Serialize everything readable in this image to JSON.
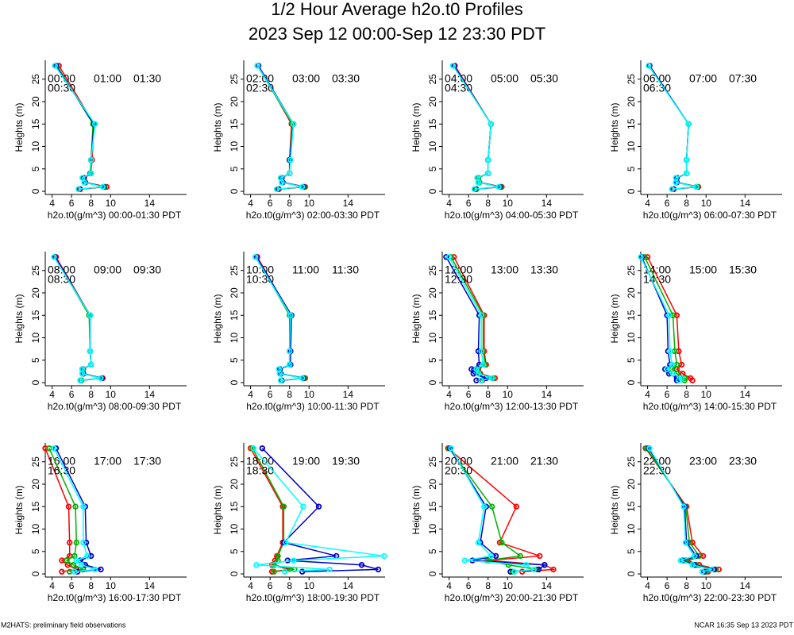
{
  "title": "1/2 Hour Average h2o.t0 Profiles",
  "subtitle": "2023 Sep 12 00:00-Sep 12 23:30 PDT",
  "footer_left": "M2HATS: preliminary field observations",
  "footer_right": "NCAR 16:35 Sep 13 2023 PDT",
  "chart_data": [
    {
      "type": "line",
      "xlabel": "h2o.t0(g/m^3) 00:00-01:30 PDT",
      "ylabel": "Heights (m)",
      "xlim": [
        3.3,
        17.8
      ],
      "ylim": [
        -0.7,
        29.2
      ],
      "xticks": [
        4,
        6,
        8,
        10,
        14
      ],
      "yticks": [
        0,
        5,
        10,
        15,
        20,
        25
      ],
      "y": [
        0.5,
        1,
        2,
        3,
        4,
        7,
        15,
        28
      ],
      "series": [
        {
          "name": "00:00",
          "color": "#ff0000",
          "values": [
            6.9,
            9.6,
            7.4,
            7.3,
            8.0,
            8.1,
            8.3,
            4.7
          ]
        },
        {
          "name": "00:30",
          "color": "#00b000",
          "values": [
            6.8,
            9.4,
            7.3,
            7.2,
            7.9,
            8.0,
            8.2,
            4.5
          ]
        },
        {
          "name": "01:00",
          "color": "#0000cc",
          "values": [
            6.8,
            9.3,
            7.4,
            7.2,
            8.0,
            8.0,
            8.3,
            4.4
          ]
        },
        {
          "name": "01:30",
          "color": "#00ffff",
          "values": [
            6.7,
            9.2,
            7.3,
            7.1,
            8.0,
            8.0,
            8.4,
            4.3
          ]
        }
      ]
    },
    {
      "type": "line",
      "xlabel": "h2o.t0(g/m^3) 02:00-03:30 PDT",
      "ylabel": "Heights (m)",
      "xlim": [
        3.3,
        17.8
      ],
      "ylim": [
        -0.7,
        29.2
      ],
      "xticks": [
        4,
        6,
        8,
        10,
        14
      ],
      "yticks": [
        0,
        5,
        10,
        15,
        20,
        25
      ],
      "y": [
        0.5,
        1,
        2,
        3,
        4,
        7,
        15,
        28
      ],
      "series": [
        {
          "name": "02:00",
          "color": "#ff0000",
          "values": [
            6.9,
            9.6,
            7.3,
            7.2,
            8.0,
            8.0,
            8.2,
            4.8
          ]
        },
        {
          "name": "02:30",
          "color": "#00b000",
          "values": [
            6.8,
            9.5,
            7.2,
            7.1,
            8.0,
            8.0,
            8.3,
            4.7
          ]
        },
        {
          "name": "03:00",
          "color": "#0000cc",
          "values": [
            6.8,
            9.4,
            7.3,
            7.2,
            8.0,
            8.0,
            8.4,
            4.8
          ]
        },
        {
          "name": "03:30",
          "color": "#00ffff",
          "values": [
            6.7,
            9.3,
            7.2,
            7.1,
            8.0,
            8.1,
            8.4,
            4.7
          ]
        }
      ]
    },
    {
      "type": "line",
      "xlabel": "h2o.t0(g/m^3) 04:00-05:30 PDT",
      "ylabel": "Heights (m)",
      "xlim": [
        3.3,
        17.8
      ],
      "ylim": [
        -0.7,
        29.2
      ],
      "xticks": [
        4,
        6,
        8,
        10,
        14
      ],
      "yticks": [
        0,
        5,
        10,
        15,
        20,
        25
      ],
      "y": [
        0.5,
        1,
        2,
        3,
        4,
        7,
        15,
        28
      ],
      "series": [
        {
          "name": "04:00",
          "color": "#ff0000",
          "values": [
            6.8,
            9.4,
            7.1,
            7.0,
            8.0,
            8.0,
            8.3,
            4.6
          ]
        },
        {
          "name": "04:30",
          "color": "#00b000",
          "values": [
            6.8,
            9.3,
            7.1,
            7.0,
            8.0,
            8.0,
            8.3,
            4.5
          ]
        },
        {
          "name": "05:00",
          "color": "#0000cc",
          "values": [
            6.7,
            9.2,
            7.0,
            6.9,
            8.0,
            8.0,
            8.3,
            4.5
          ]
        },
        {
          "name": "05:30",
          "color": "#00ffff",
          "values": [
            6.6,
            9.1,
            7.0,
            6.9,
            8.0,
            8.0,
            8.3,
            4.4
          ]
        }
      ]
    },
    {
      "type": "line",
      "xlabel": "h2o.t0(g/m^3) 06:00-07:30 PDT",
      "ylabel": "Heights (m)",
      "xlim": [
        3.3,
        17.8
      ],
      "ylim": [
        -0.7,
        29.2
      ],
      "xticks": [
        4,
        6,
        8,
        10,
        14
      ],
      "yticks": [
        0,
        5,
        10,
        15,
        20,
        25
      ],
      "y": [
        0.5,
        1,
        2,
        3,
        4,
        7,
        15,
        28
      ],
      "series": [
        {
          "name": "06:00",
          "color": "#ff0000",
          "values": [
            6.7,
            9.2,
            7.0,
            7.0,
            8.0,
            8.0,
            8.2,
            4.2
          ]
        },
        {
          "name": "06:30",
          "color": "#00b000",
          "values": [
            6.6,
            9.1,
            7.0,
            7.0,
            8.0,
            8.0,
            8.2,
            4.2
          ]
        },
        {
          "name": "07:00",
          "color": "#0000cc",
          "values": [
            6.6,
            9.0,
            7.0,
            7.0,
            8.0,
            8.0,
            8.2,
            4.2
          ]
        },
        {
          "name": "07:30",
          "color": "#00ffff",
          "values": [
            6.5,
            9.0,
            6.9,
            6.9,
            8.0,
            8.0,
            8.2,
            4.1
          ]
        }
      ]
    },
    {
      "type": "line",
      "xlabel": "h2o.t0(g/m^3) 08:00-09:30 PDT",
      "ylabel": "Heights (m)",
      "xlim": [
        3.3,
        17.8
      ],
      "ylim": [
        -0.7,
        29.2
      ],
      "xticks": [
        4,
        6,
        8,
        10,
        14
      ],
      "yticks": [
        0,
        5,
        10,
        15,
        20,
        25
      ],
      "y": [
        0.5,
        1,
        2,
        3,
        4,
        7,
        15,
        28
      ],
      "series": [
        {
          "name": "08:00",
          "color": "#ff0000",
          "values": [
            7.0,
            9.2,
            7.2,
            7.2,
            8.0,
            7.9,
            7.9,
            4.4
          ]
        },
        {
          "name": "08:30",
          "color": "#00b000",
          "values": [
            7.0,
            9.1,
            7.1,
            7.1,
            8.0,
            7.9,
            7.8,
            4.3
          ]
        },
        {
          "name": "09:00",
          "color": "#0000cc",
          "values": [
            6.9,
            9.1,
            7.2,
            7.1,
            8.0,
            7.9,
            7.9,
            4.3
          ]
        },
        {
          "name": "09:30",
          "color": "#00ffff",
          "values": [
            6.9,
            9.0,
            7.1,
            7.1,
            8.0,
            7.9,
            7.9,
            4.2
          ]
        }
      ]
    },
    {
      "type": "line",
      "xlabel": "h2o.t0(g/m^3) 10:00-11:30 PDT",
      "ylabel": "Heights (m)",
      "xlim": [
        3.3,
        17.8
      ],
      "ylim": [
        -0.7,
        29.2
      ],
      "xticks": [
        4,
        6,
        8,
        10,
        14
      ],
      "yticks": [
        0,
        5,
        10,
        15,
        20,
        25
      ],
      "y": [
        0.5,
        1,
        2,
        3,
        4,
        7,
        15,
        28
      ],
      "series": [
        {
          "name": "10:00",
          "color": "#ff0000",
          "values": [
            7.2,
            9.6,
            7.0,
            7.0,
            8.0,
            8.0,
            8.1,
            4.7
          ]
        },
        {
          "name": "10:30",
          "color": "#00b000",
          "values": [
            7.1,
            9.5,
            7.0,
            7.0,
            8.0,
            8.0,
            8.0,
            4.6
          ]
        },
        {
          "name": "11:00",
          "color": "#0000cc",
          "values": [
            7.2,
            9.4,
            7.1,
            7.0,
            8.1,
            8.1,
            8.2,
            4.6
          ]
        },
        {
          "name": "11:30",
          "color": "#00ffff",
          "values": [
            7.1,
            9.3,
            7.0,
            6.9,
            8.0,
            8.0,
            8.1,
            4.5
          ]
        }
      ]
    },
    {
      "type": "line",
      "xlabel": "h2o.t0(g/m^3) 12:00-13:30 PDT",
      "ylabel": "Heights (m)",
      "xlim": [
        3.3,
        17.8
      ],
      "ylim": [
        -0.7,
        29.2
      ],
      "xticks": [
        4,
        6,
        8,
        10,
        14
      ],
      "yticks": [
        0,
        5,
        10,
        15,
        20,
        25
      ],
      "y": [
        0.5,
        1,
        2,
        3,
        4,
        7,
        15,
        28
      ],
      "series": [
        {
          "name": "12:00",
          "color": "#ff0000",
          "values": [
            7.4,
            8.7,
            7.2,
            7.0,
            7.8,
            7.6,
            7.6,
            4.5
          ]
        },
        {
          "name": "12:30",
          "color": "#00b000",
          "values": [
            7.3,
            8.5,
            7.1,
            6.9,
            7.7,
            7.5,
            7.5,
            4.2
          ]
        },
        {
          "name": "13:00",
          "color": "#0000cc",
          "values": [
            6.8,
            7.8,
            6.5,
            6.3,
            7.1,
            7.0,
            7.1,
            3.7
          ]
        },
        {
          "name": "13:30",
          "color": "#00ffff",
          "values": [
            7.3,
            8.4,
            7.0,
            6.8,
            7.5,
            7.3,
            7.3,
            4.0
          ]
        }
      ]
    },
    {
      "type": "line",
      "xlabel": "h2o.t0(g/m^3) 14:00-15:30 PDT",
      "ylabel": "Heights (m)",
      "xlim": [
        3.3,
        17.8
      ],
      "ylim": [
        -0.7,
        29.2
      ],
      "xticks": [
        4,
        6,
        8,
        10,
        14
      ],
      "yticks": [
        0,
        5,
        10,
        15,
        20,
        25
      ],
      "y": [
        0.5,
        1,
        2,
        3,
        4,
        7,
        15,
        28
      ],
      "series": [
        {
          "name": "14:00",
          "color": "#ff0000",
          "values": [
            8.6,
            8.4,
            7.6,
            7.0,
            7.5,
            7.2,
            7.0,
            4.0
          ]
        },
        {
          "name": "14:30",
          "color": "#00b000",
          "values": [
            7.8,
            7.8,
            7.0,
            6.5,
            7.0,
            6.8,
            6.6,
            3.7
          ]
        },
        {
          "name": "15:00",
          "color": "#0000cc",
          "values": [
            7.0,
            7.0,
            6.2,
            5.8,
            6.3,
            6.1,
            6.0,
            3.4
          ]
        },
        {
          "name": "15:30",
          "color": "#00ffff",
          "values": [
            7.2,
            7.5,
            6.6,
            6.0,
            6.5,
            6.3,
            6.2,
            3.3
          ]
        }
      ]
    },
    {
      "type": "line",
      "xlabel": "h2o.t0(g/m^3) 16:00-17:30 PDT",
      "ylabel": "Heights (m)",
      "xlim": [
        3.3,
        17.8
      ],
      "ylim": [
        -0.7,
        29.2
      ],
      "xticks": [
        4,
        6,
        8,
        10,
        14
      ],
      "yticks": [
        0,
        5,
        10,
        15,
        20,
        25
      ],
      "y": [
        0.5,
        1,
        2,
        3,
        4,
        7,
        15,
        28
      ],
      "series": [
        {
          "name": "16:00",
          "color": "#ff0000",
          "values": [
            5.0,
            6.5,
            5.6,
            5.0,
            5.8,
            5.8,
            5.7,
            3.3
          ]
        },
        {
          "name": "16:30",
          "color": "#00b000",
          "values": [
            5.8,
            7.2,
            6.2,
            5.5,
            6.3,
            6.5,
            6.4,
            3.7
          ]
        },
        {
          "name": "17:00",
          "color": "#0000cc",
          "values": [
            6.6,
            9.0,
            7.4,
            6.9,
            8.0,
            7.5,
            7.4,
            4.4
          ]
        },
        {
          "name": "17:30",
          "color": "#00ffff",
          "values": [
            6.3,
            8.4,
            7.0,
            6.5,
            7.6,
            7.2,
            7.2,
            4.2
          ]
        }
      ]
    },
    {
      "type": "line",
      "xlabel": "h2o.t0(g/m^3) 18:00-19:30 PDT",
      "ylabel": "Heights (m)",
      "xlim": [
        3.3,
        17.8
      ],
      "ylim": [
        -0.7,
        29.2
      ],
      "xticks": [
        4,
        6,
        8,
        10,
        14
      ],
      "yticks": [
        0,
        5,
        10,
        15,
        20,
        25
      ],
      "y": [
        0.5,
        1,
        2,
        3,
        4,
        7,
        15,
        28
      ],
      "series": [
        {
          "name": "18:00",
          "color": "#ff0000",
          "values": [
            6.2,
            8.0,
            6.2,
            6.5,
            6.7,
            7.3,
            7.3,
            4.0
          ]
        },
        {
          "name": "18:30",
          "color": "#00b000",
          "values": [
            6.4,
            8.5,
            6.4,
            6.8,
            6.8,
            7.4,
            7.4,
            4.2
          ]
        },
        {
          "name": "19:00",
          "color": "#0000cc",
          "values": [
            9.3,
            17.1,
            15.4,
            7.8,
            12.8,
            7.4,
            11.0,
            5.2
          ]
        },
        {
          "name": "19:30",
          "color": "#00ffff",
          "values": [
            7.5,
            12.1,
            4.6,
            8.4,
            17.7,
            7.6,
            9.4,
            4.3
          ]
        }
      ]
    },
    {
      "type": "line",
      "xlabel": "h2o.t0(g/m^3) 20:00-21:30 PDT",
      "ylabel": "Heights (m)",
      "xlim": [
        3.3,
        17.8
      ],
      "ylim": [
        -0.7,
        29.2
      ],
      "xticks": [
        4,
        6,
        8,
        10,
        14
      ],
      "yticks": [
        0,
        5,
        10,
        15,
        20,
        25
      ],
      "y": [
        0.5,
        1,
        2,
        3,
        4,
        7,
        15,
        28
      ],
      "series": [
        {
          "name": "20:00",
          "color": "#ff0000",
          "values": [
            11.5,
            14.7,
            13.8,
            8.1,
            13.3,
            9.2,
            10.9,
            3.9
          ]
        },
        {
          "name": "20:30",
          "color": "#00b000",
          "values": [
            10.5,
            13.0,
            10.1,
            7.9,
            11.3,
            9.4,
            8.4,
            4.0
          ]
        },
        {
          "name": "21:00",
          "color": "#0000cc",
          "values": [
            10.3,
            13.2,
            13.8,
            6.4,
            8.8,
            7.2,
            7.8,
            4.1
          ]
        },
        {
          "name": "21:30",
          "color": "#00ffff",
          "values": [
            10.7,
            12.7,
            11.9,
            5.6,
            8.3,
            7.0,
            7.6,
            4.2
          ]
        }
      ]
    },
    {
      "type": "line",
      "xlabel": "h2o.t0(g/m^3) 22:00-23:30 PDT",
      "ylabel": "Heights (m)",
      "xlim": [
        3.3,
        17.8
      ],
      "ylim": [
        -0.7,
        29.2
      ],
      "xticks": [
        4,
        6,
        8,
        10,
        14
      ],
      "yticks": [
        0,
        5,
        10,
        15,
        20,
        25
      ],
      "y": [
        0.5,
        1,
        2,
        3,
        4,
        7,
        15,
        28
      ],
      "series": [
        {
          "name": "22:00",
          "color": "#ff0000",
          "values": [
            10.2,
            11.3,
            9.3,
            8.1,
            9.7,
            8.6,
            8.0,
            3.8
          ]
        },
        {
          "name": "22:30",
          "color": "#00b000",
          "values": [
            10.0,
            11.0,
            9.0,
            7.9,
            9.3,
            8.3,
            7.9,
            3.9
          ]
        },
        {
          "name": "23:00",
          "color": "#0000cc",
          "values": [
            9.8,
            10.8,
            8.8,
            7.6,
            9.0,
            8.0,
            7.8,
            4.1
          ]
        },
        {
          "name": "23:30",
          "color": "#00ffff",
          "values": [
            9.6,
            10.6,
            8.6,
            7.4,
            8.8,
            7.9,
            7.7,
            4.2
          ]
        }
      ]
    }
  ]
}
